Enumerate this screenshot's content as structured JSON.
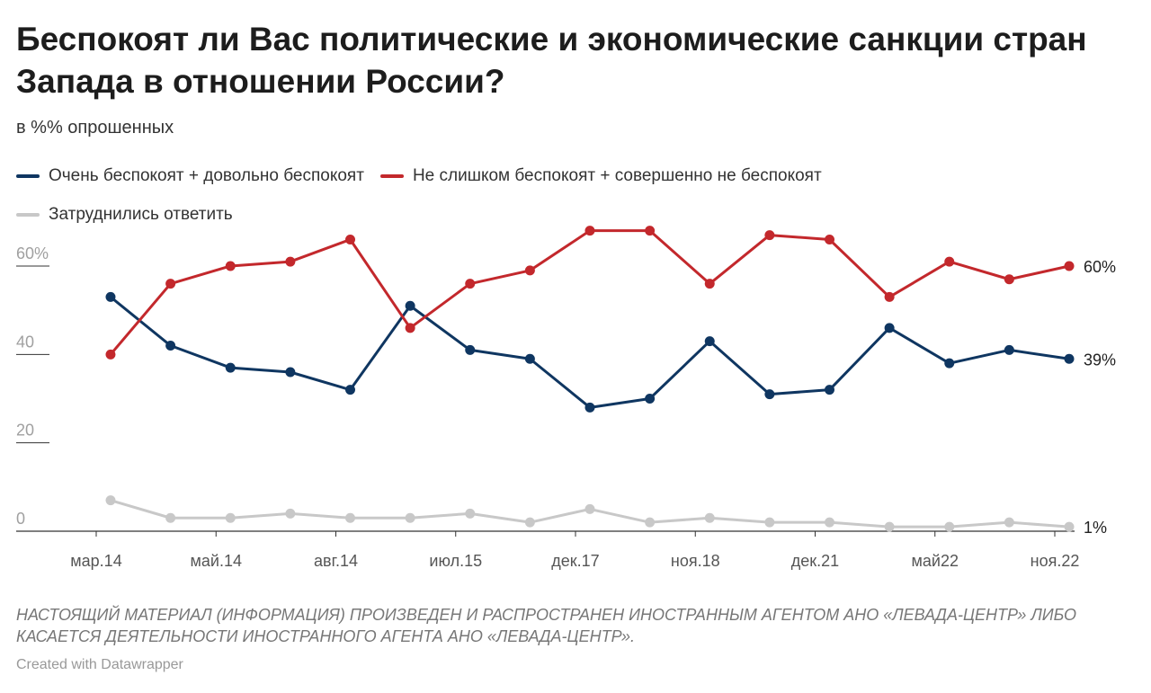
{
  "header": {
    "title": "Беспокоят ли Вас политические и экономические санкции стран Запада в отношении России?",
    "subtitle": "в %% опрошенных"
  },
  "footer": {
    "notes": "НАСТОЯЩИЙ МАТЕРИАЛ (ИНФОРМАЦИЯ) ПРОИЗВЕДЕН И РАСПРОСТРАНЕН ИНОСТРАННЫМ АГЕНТОМ АНО «ЛЕВАДА-ЦЕНТР» ЛИБО КАСАЕТСЯ ДЕЯТЕЛЬНОСТИ ИНОСТРАННОГО АГЕНТА АНО «ЛЕВАДА-ЦЕНТР».",
    "credit": "Created with Datawrapper"
  },
  "chart_data": {
    "type": "line",
    "ylim": [
      0,
      65
    ],
    "y_ticks": [
      0,
      20,
      40,
      60
    ],
    "y_tick_labels": [
      "0",
      "20",
      "40",
      "60%"
    ],
    "grid": false,
    "legend_position": "top-left",
    "x_tick_labels": [
      "мар.14",
      "май.14",
      "авг.14",
      "июл.15",
      "дек.17",
      "ноя.18",
      "дек.21",
      "май22",
      "ноя.22"
    ],
    "x_tick_indices": [
      0,
      2,
      4,
      6,
      8,
      10,
      12,
      14,
      16
    ],
    "series": [
      {
        "name": "Очень беспокоят + довольно беспокоят",
        "color": "#0f3661",
        "values": [
          53,
          42,
          37,
          36,
          32,
          51,
          41,
          39,
          28,
          30,
          43,
          31,
          32,
          46,
          38,
          41,
          39
        ],
        "end_label": "39%"
      },
      {
        "name": "Не слишком беспокоят + совершенно не беспокоят",
        "color": "#c3282c",
        "values": [
          40,
          56,
          60,
          61,
          66,
          46,
          56,
          59,
          68,
          68,
          56,
          67,
          66,
          53,
          61,
          57,
          60
        ],
        "end_label": "60%"
      },
      {
        "name": "Затруднились ответить",
        "color": "#c8c8c8",
        "values": [
          7,
          3,
          3,
          4,
          3,
          3,
          4,
          2,
          5,
          2,
          3,
          2,
          2,
          1,
          1,
          2,
          1
        ],
        "end_label": "1%"
      }
    ]
  }
}
